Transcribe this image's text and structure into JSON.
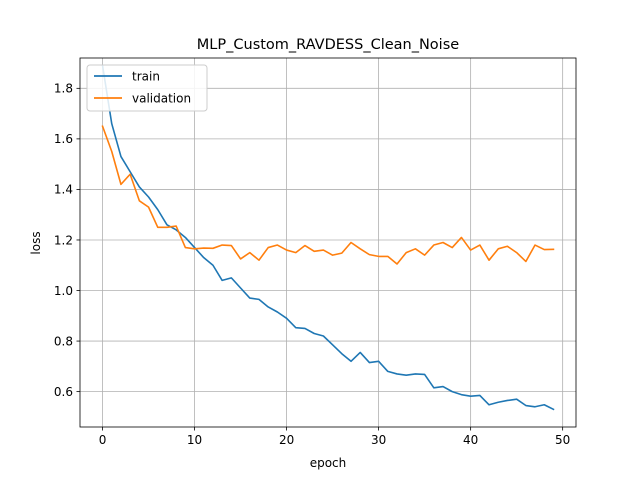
{
  "chart_data": {
    "type": "line",
    "title": "MLP_Custom_RAVDESS_Clean_Noise",
    "xlabel": "epoch",
    "ylabel": "loss",
    "xlim": [
      -2.45,
      51.45
    ],
    "ylim": [
      0.46,
      1.92
    ],
    "xticks": [
      0,
      10,
      20,
      30,
      40,
      50
    ],
    "yticks": [
      0.6,
      0.8,
      1.0,
      1.2,
      1.4,
      1.6,
      1.8
    ],
    "ytick_labels": [
      "0.6",
      "0.8",
      "1.0",
      "1.2",
      "1.4",
      "1.6",
      "1.8"
    ],
    "grid": true,
    "legend_position": "upper left",
    "x": [
      0,
      1,
      2,
      3,
      4,
      5,
      6,
      7,
      8,
      9,
      10,
      11,
      12,
      13,
      14,
      15,
      16,
      17,
      18,
      19,
      20,
      21,
      22,
      23,
      24,
      25,
      26,
      27,
      28,
      29,
      30,
      31,
      32,
      33,
      34,
      35,
      36,
      37,
      38,
      39,
      40,
      41,
      42,
      43,
      44,
      45,
      46,
      47,
      48,
      49
    ],
    "series": [
      {
        "name": "train",
        "color": "#1f77b4",
        "values": [
          1.89,
          1.66,
          1.53,
          1.47,
          1.41,
          1.37,
          1.32,
          1.26,
          1.24,
          1.21,
          1.17,
          1.13,
          1.1,
          1.04,
          1.05,
          1.01,
          0.97,
          0.965,
          0.935,
          0.915,
          0.89,
          0.853,
          0.85,
          0.83,
          0.82,
          0.785,
          0.75,
          0.72,
          0.755,
          0.715,
          0.72,
          0.68,
          0.67,
          0.665,
          0.67,
          0.668,
          0.615,
          0.62,
          0.6,
          0.588,
          0.582,
          0.585,
          0.548,
          0.558,
          0.565,
          0.57,
          0.545,
          0.54,
          0.548,
          0.53
        ]
      },
      {
        "name": "validation",
        "color": "#ff7f0e",
        "values": [
          1.65,
          1.55,
          1.42,
          1.46,
          1.355,
          1.33,
          1.25,
          1.25,
          1.255,
          1.17,
          1.165,
          1.168,
          1.167,
          1.18,
          1.178,
          1.125,
          1.15,
          1.12,
          1.17,
          1.18,
          1.16,
          1.15,
          1.178,
          1.155,
          1.16,
          1.14,
          1.148,
          1.19,
          1.165,
          1.142,
          1.135,
          1.135,
          1.105,
          1.15,
          1.165,
          1.14,
          1.18,
          1.19,
          1.17,
          1.21,
          1.16,
          1.18,
          1.12,
          1.165,
          1.175,
          1.15,
          1.115,
          1.18,
          1.162,
          1.163
        ]
      }
    ]
  }
}
